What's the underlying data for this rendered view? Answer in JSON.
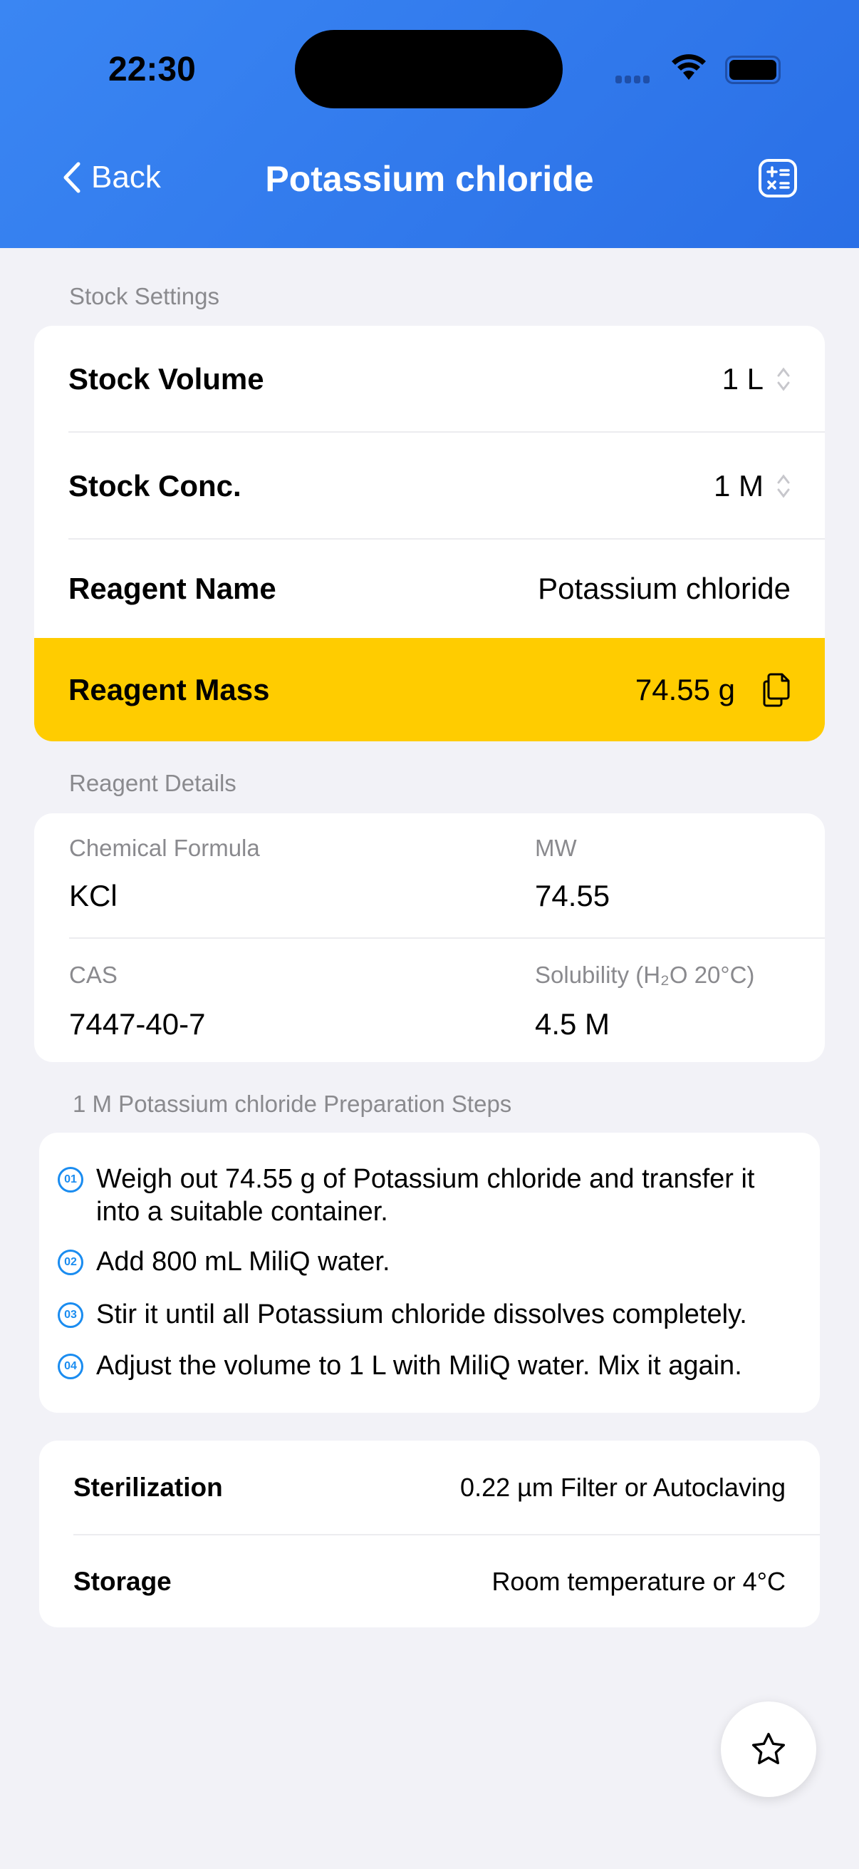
{
  "status_bar": {
    "time": "22:30"
  },
  "nav": {
    "back_label": "Back",
    "title": "Potassium chloride",
    "calculator_icon": "calculator-icon"
  },
  "stock_settings": {
    "section_label": "Stock Settings",
    "volume": {
      "label": "Stock Volume",
      "value": "1 L"
    },
    "conc": {
      "label": "Stock Conc.",
      "value": "1 M"
    },
    "name": {
      "label": "Reagent Name",
      "value": "Potassium chloride"
    },
    "mass": {
      "label": "Reagent Mass",
      "value": "74.55 g"
    },
    "highlight_color": "#ffcc00"
  },
  "reagent_details": {
    "section_label": "Reagent Details",
    "formula": {
      "label": "Chemical Formula",
      "value": "KCl"
    },
    "mw": {
      "label": "MW",
      "value": "74.55"
    },
    "cas": {
      "label": "CAS",
      "value": "7447-40-7"
    },
    "solubility": {
      "label": "Solubility (H₂O 20°C)",
      "value": "4.5 M"
    }
  },
  "steps": {
    "section_label": "1 M Potassium chloride Preparation Steps",
    "items": [
      {
        "num": "01",
        "text": "Weigh out 74.55 g of Potassium chloride and transfer it into a suitable container."
      },
      {
        "num": "02",
        "text": "Add 800 mL MiliQ water."
      },
      {
        "num": "03",
        "text": "Stir it until all Potassium chloride dissolves completely."
      },
      {
        "num": "04",
        "text": "Adjust the volume to 1 L with MiliQ water. Mix it again."
      }
    ]
  },
  "info": {
    "sterilization": {
      "label": "Sterilization",
      "value": "0.22 µm Filter or Autoclaving"
    },
    "storage": {
      "label": "Storage",
      "value": "Room temperature or 4°C"
    }
  }
}
